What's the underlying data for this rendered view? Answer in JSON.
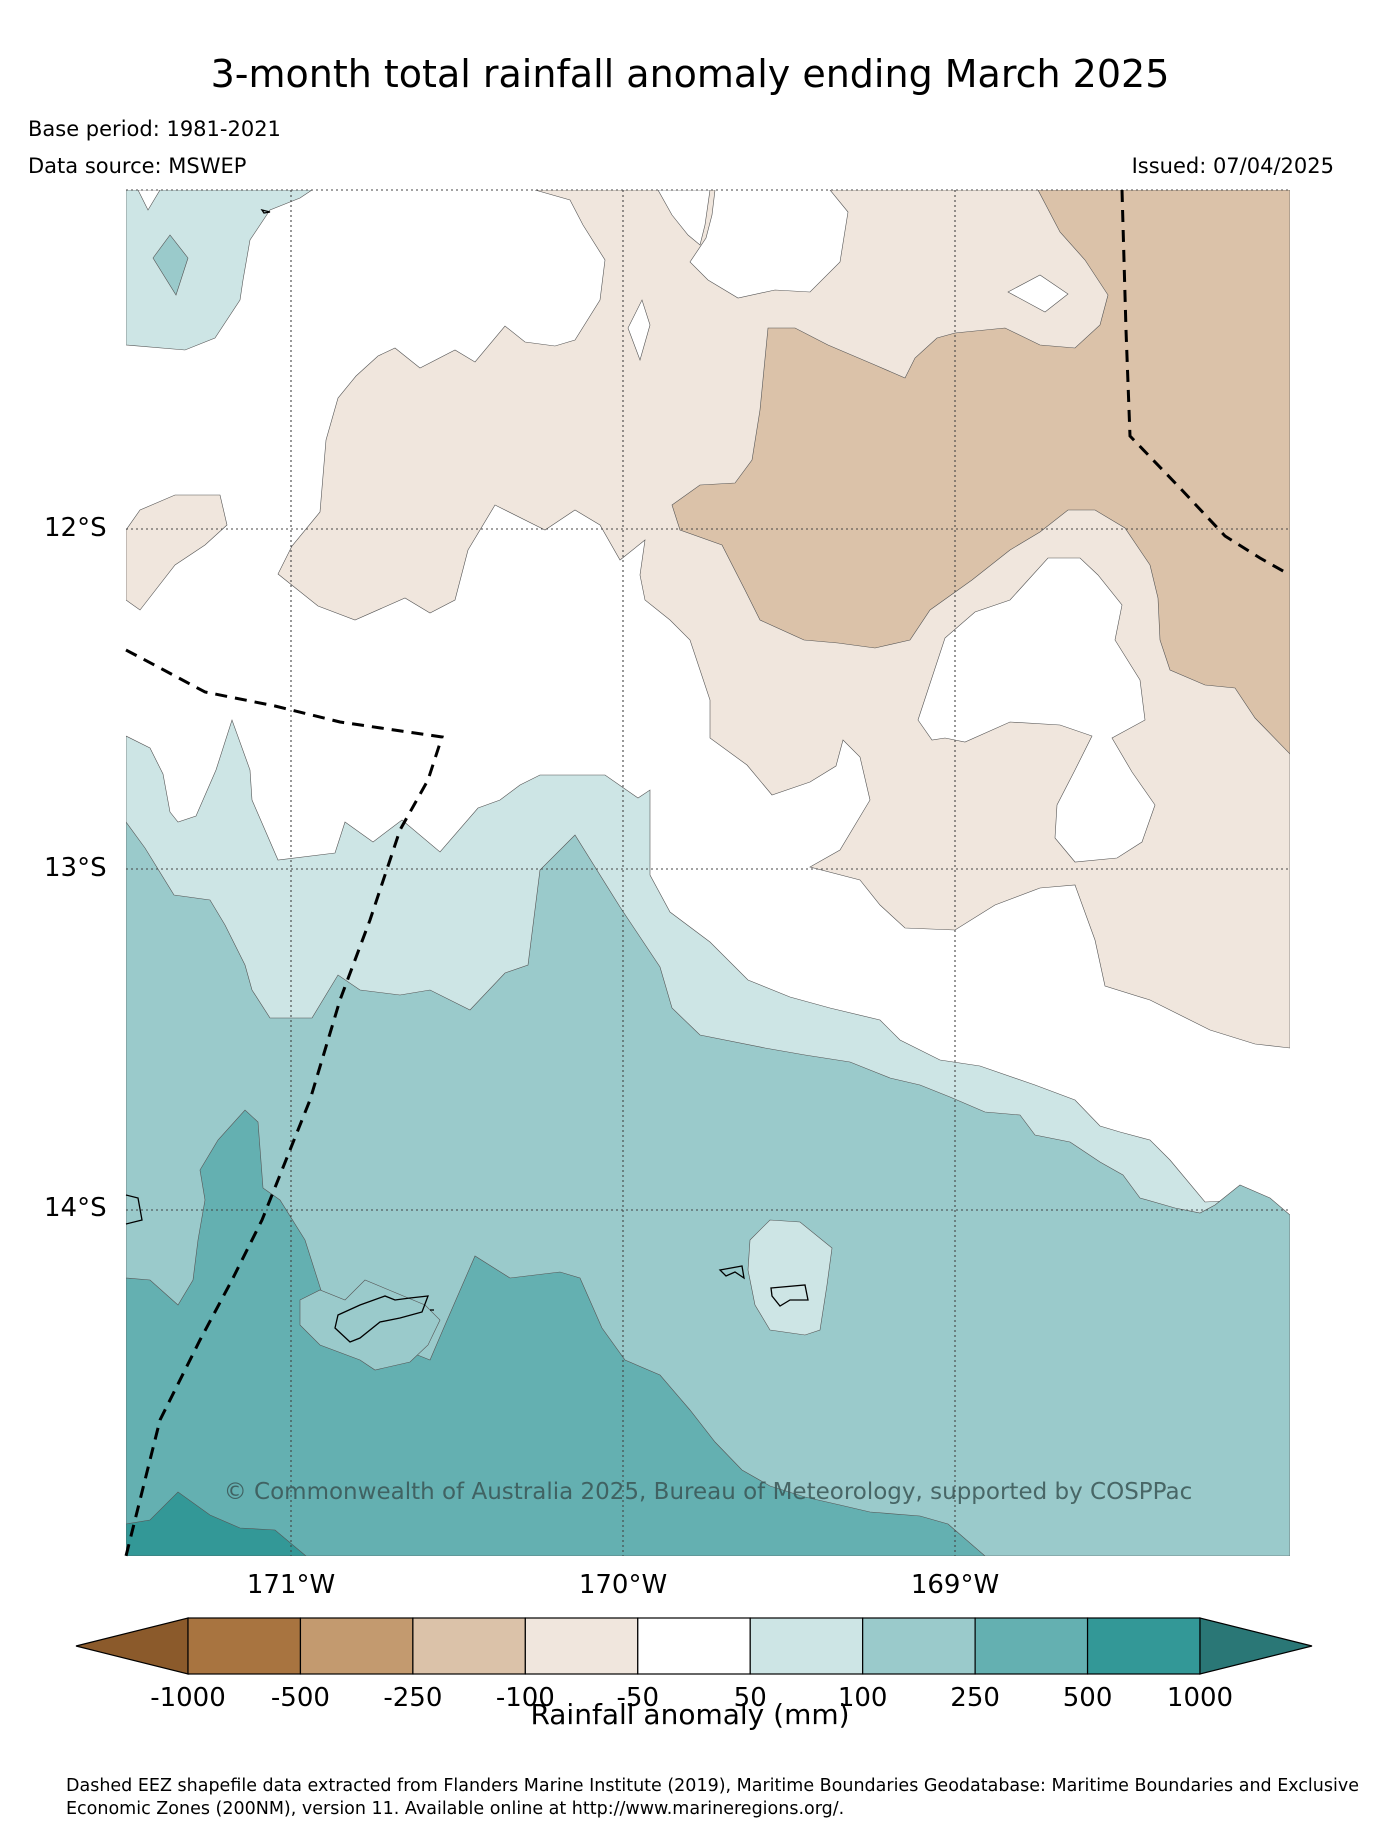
{
  "title": "3-month total rainfall anomaly ending March 2025",
  "base_period": "Base period: 1981-2021",
  "data_source": "Data source: MSWEP",
  "issued": "Issued: 07/04/2025",
  "map": {
    "latitude_labels": [
      "12°S",
      "13°S",
      "14°S"
    ],
    "longitude_labels": [
      "171°W",
      "170°W",
      "169°W"
    ],
    "copyright": "© Commonwealth of Australia 2025, Bureau of Meteorology, supported by COSPPac",
    "eez_line_style": "dashed"
  },
  "legend": {
    "title": "Rainfall anomaly (mm)",
    "tick_labels": [
      "-1000",
      "-500",
      "-250",
      "-100",
      "-50",
      "50",
      "100",
      "250",
      "500",
      "1000"
    ],
    "colors": {
      "below_-1000": "#8b5a2b",
      "-1000_to_-500": "#a87440",
      "-500_to_-250": "#c39a6f",
      "-250_to_-100": "#dbc2a9",
      "-100_to_-50": "#f0e6dd",
      "-50_to_50": "#ffffff",
      "50_to_100": "#cde5e5",
      "100_to_250": "#9acacb",
      "250_to_500": "#64b0b1",
      "500_to_1000": "#339897",
      "above_1000": "#2a7776"
    }
  },
  "footnote": "Dashed EEZ shapefile data extracted from Flanders Marine Institute (2019), Maritime Boundaries Geodatabase: Maritime Boundaries and Exclusive Economic Zones (200NM), version 11. Available online at http://www.marineregions.org/."
}
